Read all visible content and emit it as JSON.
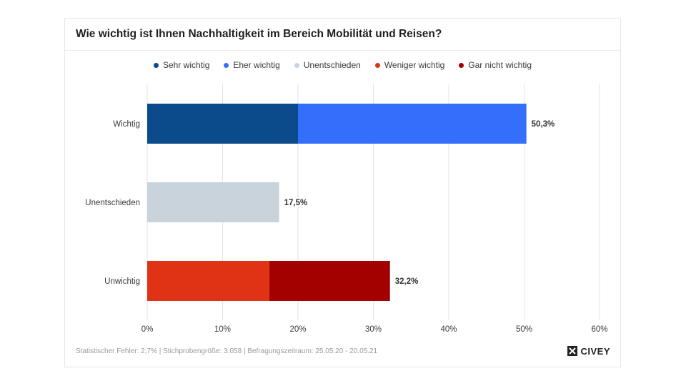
{
  "title": "Wie wichtig ist Ihnen Nachhaltigkeit im Bereich Mobilität und Reisen?",
  "footnote": "Statistischer Fehler: 2,7% | Stichprobengröße: 3.058 | Befragungszeitraum: 25.05.20 - 20.05.21",
  "brand": "CIVEY",
  "legend": [
    {
      "label": "Sehr wichtig",
      "color": "#0b4a8b"
    },
    {
      "label": "Eher wichtig",
      "color": "#336ffb"
    },
    {
      "label": "Unentschieden",
      "color": "#c8d3dc"
    },
    {
      "label": "Weniger wichtig",
      "color": "#e03316"
    },
    {
      "label": "Gar nicht wichtig",
      "color": "#a30000"
    }
  ],
  "chart_data": {
    "type": "bar",
    "orientation": "horizontal",
    "stacked": true,
    "categories": [
      "Wichtig",
      "Unentschieden",
      "Unwichtig"
    ],
    "series": [
      {
        "name": "Sehr wichtig",
        "color": "#0b4a8b",
        "values": [
          20.0,
          0,
          0
        ]
      },
      {
        "name": "Eher wichtig",
        "color": "#336ffb",
        "values": [
          30.3,
          0,
          0
        ]
      },
      {
        "name": "Unentschieden",
        "color": "#c8d3dc",
        "values": [
          0,
          17.5,
          0
        ]
      },
      {
        "name": "Weniger wichtig",
        "color": "#e03316",
        "values": [
          0,
          0,
          16.2
        ]
      },
      {
        "name": "Gar nicht wichtig",
        "color": "#a30000",
        "values": [
          0,
          0,
          16.0
        ]
      }
    ],
    "totals": [
      50.3,
      17.5,
      32.2
    ],
    "total_labels": [
      "50,3%",
      "17,5%",
      "32,2%"
    ],
    "xlim": [
      0,
      60
    ],
    "xticks": [
      0,
      10,
      20,
      30,
      40,
      50,
      60
    ],
    "xtick_labels": [
      "0%",
      "10%",
      "20%",
      "30%",
      "40%",
      "50%",
      "60%"
    ],
    "grid": true,
    "legend_position": "top-center"
  }
}
